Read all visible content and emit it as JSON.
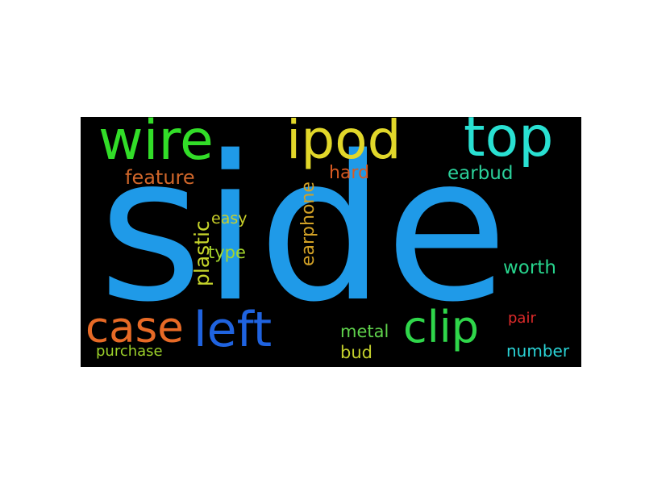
{
  "words": [
    {
      "id": "side",
      "text": "side",
      "color": "#1f9ae8",
      "orientation": "horizontal"
    },
    {
      "id": "wire",
      "text": "wire",
      "color": "#32dd28",
      "orientation": "horizontal"
    },
    {
      "id": "ipod",
      "text": "ipod",
      "color": "#e1d72a",
      "orientation": "horizontal"
    },
    {
      "id": "top",
      "text": "top",
      "color": "#29e0d2",
      "orientation": "horizontal"
    },
    {
      "id": "feature",
      "text": "feature",
      "color": "#d0662a",
      "orientation": "horizontal"
    },
    {
      "id": "hard",
      "text": "hard",
      "color": "#d95a22",
      "orientation": "horizontal"
    },
    {
      "id": "earbud",
      "text": "earbud",
      "color": "#2bd09a",
      "orientation": "horizontal"
    },
    {
      "id": "easy",
      "text": "easy",
      "color": "#c8cf29",
      "orientation": "horizontal"
    },
    {
      "id": "plastic",
      "text": "plastic",
      "color": "#c6d52b",
      "orientation": "vertical"
    },
    {
      "id": "earphone",
      "text": "earphone",
      "color": "#d2a126",
      "orientation": "vertical"
    },
    {
      "id": "type",
      "text": "type",
      "color": "#a4d62c",
      "orientation": "horizontal"
    },
    {
      "id": "worth",
      "text": "worth",
      "color": "#27d38c",
      "orientation": "horizontal"
    },
    {
      "id": "case",
      "text": "case",
      "color": "#e76a26",
      "orientation": "horizontal"
    },
    {
      "id": "left",
      "text": "left",
      "color": "#1f63e0",
      "orientation": "horizontal"
    },
    {
      "id": "clip",
      "text": "clip",
      "color": "#2fd64a",
      "orientation": "horizontal"
    },
    {
      "id": "pair",
      "text": "pair",
      "color": "#dd2a2a",
      "orientation": "horizontal"
    },
    {
      "id": "metal",
      "text": "metal",
      "color": "#5fd24c",
      "orientation": "horizontal"
    },
    {
      "id": "bud",
      "text": "bud",
      "color": "#c3cf2c",
      "orientation": "horizontal"
    },
    {
      "id": "number",
      "text": "number",
      "color": "#2ad3d6",
      "orientation": "horizontal"
    },
    {
      "id": "purchase",
      "text": "purchase",
      "color": "#9bd02a",
      "orientation": "horizontal"
    }
  ]
}
